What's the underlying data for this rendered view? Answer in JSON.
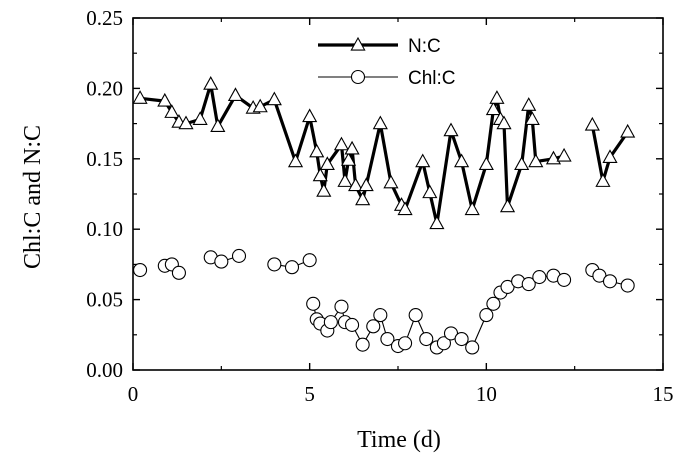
{
  "chart_data": {
    "type": "line",
    "xlabel": "Time (d)",
    "ylabel": "Chl:C and N:C",
    "xlim": [
      0,
      15
    ],
    "ylim": [
      0,
      0.25
    ],
    "x_ticks": [
      0,
      5,
      10,
      15
    ],
    "y_ticks": [
      0.0,
      0.05,
      0.1,
      0.15,
      0.2,
      0.25
    ],
    "x_tick_labels": [
      "0",
      "5",
      "10",
      "15"
    ],
    "y_tick_labels": [
      "0.00",
      "0.05",
      "0.10",
      "0.15",
      "0.20",
      "0.25"
    ],
    "grid": false,
    "legend_position": "top-center",
    "series": [
      {
        "name": "N:C",
        "marker": "triangle",
        "color": "#000000",
        "segments": [
          [
            [
              0.2,
              0.193
            ],
            [
              0.9,
              0.191
            ],
            [
              1.1,
              0.183
            ],
            [
              1.3,
              0.176
            ],
            [
              1.5,
              0.175
            ],
            [
              1.9,
              0.178
            ],
            [
              2.2,
              0.203
            ],
            [
              2.4,
              0.173
            ],
            [
              2.9,
              0.195
            ],
            [
              3.4,
              0.186
            ],
            [
              3.6,
              0.187
            ],
            [
              4.0,
              0.192
            ],
            [
              4.6,
              0.148
            ],
            [
              5.0,
              0.18
            ],
            [
              5.2,
              0.155
            ],
            [
              5.3,
              0.138
            ],
            [
              5.4,
              0.127
            ],
            [
              5.5,
              0.146
            ],
            [
              5.9,
              0.16
            ],
            [
              6.0,
              0.134
            ],
            [
              6.1,
              0.149
            ],
            [
              6.2,
              0.157
            ],
            [
              6.3,
              0.131
            ],
            [
              6.5,
              0.121
            ],
            [
              6.6,
              0.131
            ],
            [
              7.0,
              0.175
            ],
            [
              7.3,
              0.133
            ],
            [
              7.6,
              0.117
            ],
            [
              7.7,
              0.114
            ],
            [
              8.2,
              0.148
            ],
            [
              8.4,
              0.126
            ],
            [
              8.6,
              0.104
            ],
            [
              9.0,
              0.17
            ],
            [
              9.3,
              0.148
            ],
            [
              9.6,
              0.114
            ],
            [
              10.0,
              0.146
            ],
            [
              10.2,
              0.185
            ],
            [
              10.3,
              0.193
            ],
            [
              10.4,
              0.178
            ],
            [
              10.5,
              0.175
            ],
            [
              10.6,
              0.116
            ],
            [
              11.0,
              0.146
            ],
            [
              11.2,
              0.188
            ],
            [
              11.3,
              0.178
            ],
            [
              11.4,
              0.148
            ],
            [
              11.9,
              0.15
            ],
            [
              12.2,
              0.152
            ]
          ],
          [
            [
              13.0,
              0.174
            ],
            [
              13.3,
              0.134
            ],
            [
              13.5,
              0.151
            ],
            [
              14.0,
              0.169
            ]
          ]
        ]
      },
      {
        "name": "Chl:C",
        "marker": "circle",
        "color": "#000000",
        "segments": [
          [
            [
              0.2,
              0.071
            ]
          ],
          [
            [
              0.9,
              0.074
            ],
            [
              1.1,
              0.075
            ],
            [
              1.3,
              0.069
            ]
          ],
          [
            [
              2.2,
              0.08
            ],
            [
              2.5,
              0.077
            ],
            [
              3.0,
              0.081
            ]
          ],
          [
            [
              4.0,
              0.075
            ],
            [
              4.5,
              0.073
            ],
            [
              5.0,
              0.078
            ]
          ],
          [
            [
              5.1,
              0.047
            ],
            [
              5.2,
              0.036
            ],
            [
              5.3,
              0.033
            ],
            [
              5.5,
              0.028
            ],
            [
              5.6,
              0.034
            ],
            [
              5.9,
              0.045
            ],
            [
              6.0,
              0.034
            ],
            [
              6.2,
              0.032
            ],
            [
              6.5,
              0.018
            ],
            [
              6.8,
              0.031
            ],
            [
              7.0,
              0.039
            ],
            [
              7.2,
              0.022
            ],
            [
              7.5,
              0.017
            ],
            [
              7.7,
              0.019
            ],
            [
              8.0,
              0.039
            ],
            [
              8.3,
              0.022
            ],
            [
              8.6,
              0.016
            ],
            [
              8.8,
              0.019
            ],
            [
              9.0,
              0.026
            ],
            [
              9.3,
              0.022
            ],
            [
              9.6,
              0.016
            ],
            [
              10.0,
              0.039
            ],
            [
              10.2,
              0.047
            ],
            [
              10.4,
              0.055
            ],
            [
              10.6,
              0.059
            ],
            [
              10.9,
              0.063
            ],
            [
              11.2,
              0.061
            ],
            [
              11.5,
              0.066
            ],
            [
              11.9,
              0.067
            ],
            [
              12.2,
              0.064
            ]
          ],
          [
            [
              13.0,
              0.071
            ],
            [
              13.2,
              0.067
            ],
            [
              13.5,
              0.063
            ],
            [
              14.0,
              0.06
            ]
          ]
        ]
      }
    ]
  }
}
